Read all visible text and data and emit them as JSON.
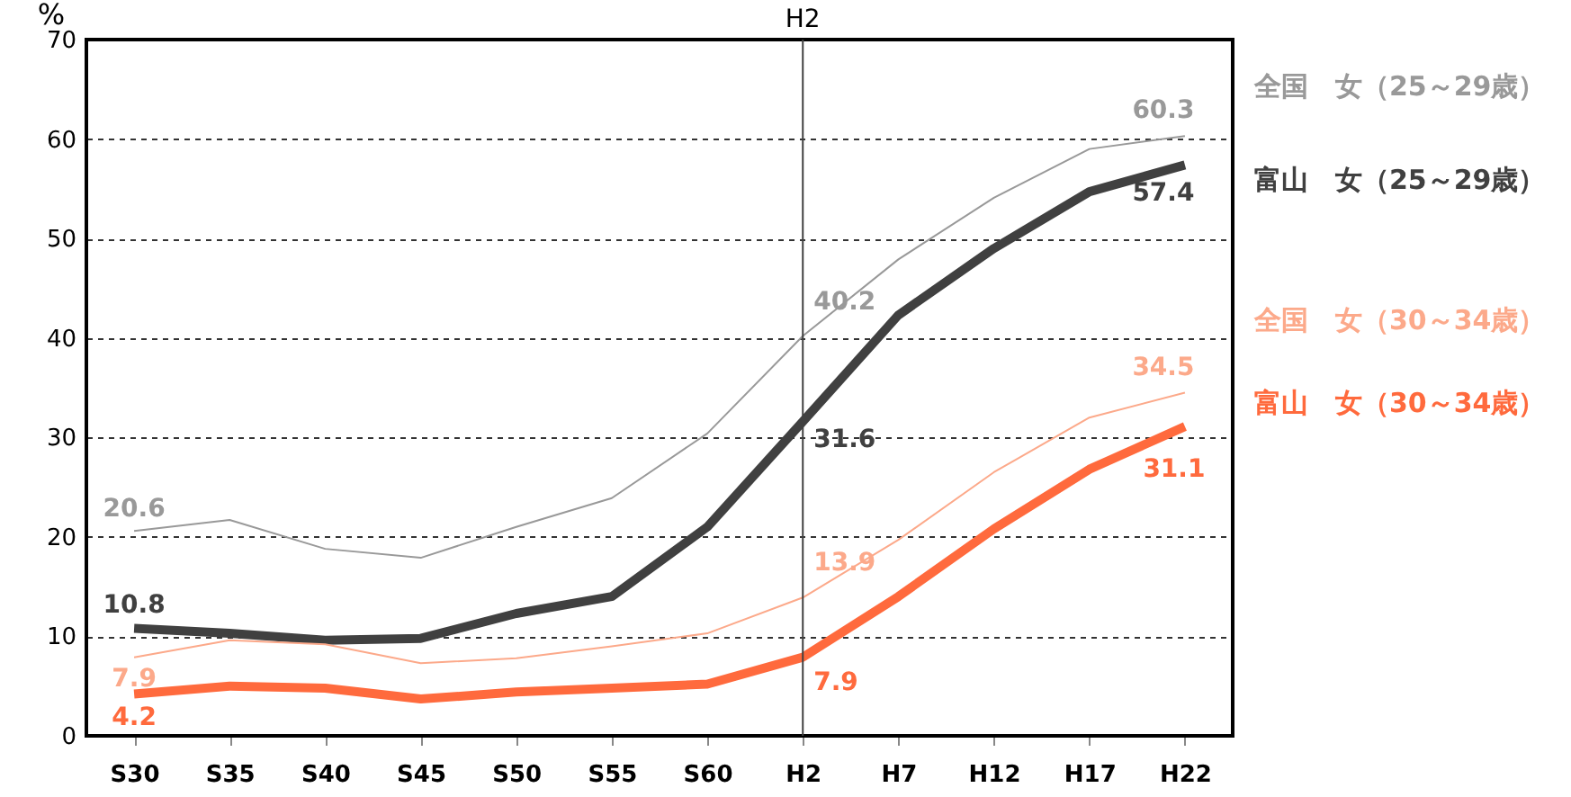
{
  "chart_data": {
    "type": "line",
    "ylabel": "%",
    "categories": [
      "S30",
      "S35",
      "S40",
      "S45",
      "S50",
      "S55",
      "S60",
      "H2",
      "H7",
      "H12",
      "H17",
      "H22"
    ],
    "series": [
      {
        "name": "全国　女（25～29歳）",
        "color": "#999999",
        "values": [
          20.6,
          21.7,
          18.8,
          17.9,
          21.0,
          23.9,
          30.4,
          40.2,
          47.9,
          54.1,
          59.0,
          60.3
        ],
        "value_labels": [
          "20.6",
          null,
          null,
          null,
          null,
          null,
          null,
          "40.2",
          null,
          null,
          null,
          "60.3"
        ]
      },
      {
        "name": "富山　女（25～29歳）",
        "color": "#404040",
        "values": [
          10.8,
          10.3,
          9.6,
          9.8,
          12.3,
          14.0,
          21.0,
          31.6,
          42.3,
          49.0,
          54.7,
          57.4
        ],
        "value_labels": [
          "10.8",
          null,
          null,
          null,
          null,
          null,
          null,
          "31.6",
          null,
          null,
          null,
          "57.4"
        ]
      },
      {
        "name": "全国　女（30～34歳）",
        "color": "#fca98a",
        "values": [
          7.9,
          9.6,
          9.2,
          7.3,
          7.8,
          9.0,
          10.3,
          13.9,
          19.7,
          26.5,
          32.0,
          34.5
        ],
        "value_labels": [
          "7.9",
          null,
          null,
          null,
          null,
          null,
          null,
          "13.9",
          null,
          null,
          null,
          "34.5"
        ]
      },
      {
        "name": "富山　女（30～34歳）",
        "color": "#ff6a3d",
        "values": [
          4.2,
          5.0,
          4.8,
          3.7,
          4.4,
          4.8,
          5.2,
          7.9,
          14.0,
          20.8,
          26.8,
          31.1
        ],
        "value_labels": [
          "4.2",
          null,
          null,
          null,
          null,
          null,
          null,
          "7.9",
          null,
          null,
          null,
          "31.1"
        ]
      }
    ],
    "ylim": [
      0,
      70
    ],
    "yticks": [
      0,
      10,
      20,
      30,
      40,
      50,
      60,
      70
    ],
    "grid": "y",
    "marker": "none",
    "line_style": "solid",
    "ref_lines": [
      {
        "axis": "x",
        "value": "H2",
        "label": "H2",
        "color": "#404040"
      }
    ]
  }
}
